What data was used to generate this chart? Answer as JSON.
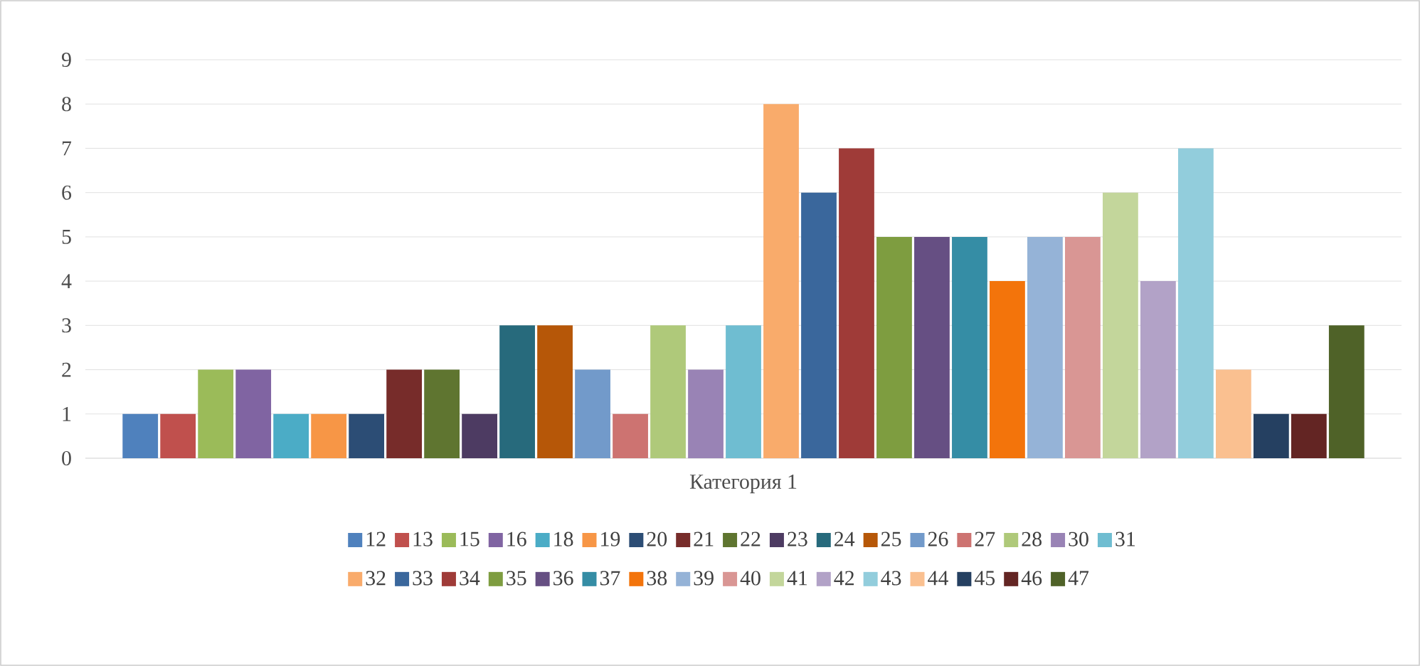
{
  "chart_data": {
    "type": "bar",
    "categories": [
      "Категория 1"
    ],
    "series": [
      {
        "name": "12",
        "color": "#4f81bd",
        "values": [
          1
        ]
      },
      {
        "name": "13",
        "color": "#c0504d",
        "values": [
          1
        ]
      },
      {
        "name": "15",
        "color": "#9bbb59",
        "values": [
          2
        ]
      },
      {
        "name": "16",
        "color": "#8064a2",
        "values": [
          2
        ]
      },
      {
        "name": "18",
        "color": "#4bacc6",
        "values": [
          1
        ]
      },
      {
        "name": "19",
        "color": "#f79646",
        "values": [
          1
        ]
      },
      {
        "name": "20",
        "color": "#2c4d75",
        "values": [
          1
        ]
      },
      {
        "name": "21",
        "color": "#772c2a",
        "values": [
          2
        ]
      },
      {
        "name": "22",
        "color": "#5f7530",
        "values": [
          2
        ]
      },
      {
        "name": "23",
        "color": "#4d3b62",
        "values": [
          1
        ]
      },
      {
        "name": "24",
        "color": "#276a7c",
        "values": [
          3
        ]
      },
      {
        "name": "25",
        "color": "#b65708",
        "values": [
          3
        ]
      },
      {
        "name": "26",
        "color": "#729aca",
        "values": [
          2
        ]
      },
      {
        "name": "27",
        "color": "#cd7371",
        "values": [
          1
        ]
      },
      {
        "name": "28",
        "color": "#afc97a",
        "values": [
          3
        ]
      },
      {
        "name": "30",
        "color": "#9983b5",
        "values": [
          2
        ]
      },
      {
        "name": "31",
        "color": "#6fbdd1",
        "values": [
          3
        ]
      },
      {
        "name": "32",
        "color": "#f9ab6b",
        "values": [
          8
        ]
      },
      {
        "name": "33",
        "color": "#3a679c",
        "values": [
          6
        ]
      },
      {
        "name": "34",
        "color": "#9f3b38",
        "values": [
          7
        ]
      },
      {
        "name": "35",
        "color": "#7e9d40",
        "values": [
          5
        ]
      },
      {
        "name": "36",
        "color": "#664f83",
        "values": [
          5
        ]
      },
      {
        "name": "37",
        "color": "#358da5",
        "values": [
          5
        ]
      },
      {
        "name": "38",
        "color": "#f3740b",
        "values": [
          4
        ]
      },
      {
        "name": "39",
        "color": "#95b3d7",
        "values": [
          5
        ]
      },
      {
        "name": "40",
        "color": "#d99694",
        "values": [
          5
        ]
      },
      {
        "name": "41",
        "color": "#c3d69b",
        "values": [
          6
        ]
      },
      {
        "name": "42",
        "color": "#b2a2c7",
        "values": [
          4
        ]
      },
      {
        "name": "43",
        "color": "#92cddc",
        "values": [
          7
        ]
      },
      {
        "name": "44",
        "color": "#fac090",
        "values": [
          2
        ]
      },
      {
        "name": "45",
        "color": "#254061",
        "values": [
          1
        ]
      },
      {
        "name": "46",
        "color": "#632523",
        "values": [
          1
        ]
      },
      {
        "name": "47",
        "color": "#4f6228",
        "values": [
          3
        ]
      }
    ],
    "ylim": [
      0,
      9
    ],
    "yticks": [
      0,
      1,
      2,
      3,
      4,
      5,
      6,
      7,
      8,
      9
    ],
    "grid": "y",
    "legend": "bottom"
  }
}
